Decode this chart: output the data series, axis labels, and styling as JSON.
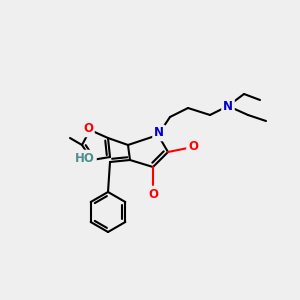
{
  "background_color": "#efefef",
  "atom_colors": {
    "C": "#000000",
    "N": "#0000cc",
    "O": "#ff0000",
    "H": "#4a9090"
  },
  "bond_lw": 1.5,
  "font_size": 8.5
}
